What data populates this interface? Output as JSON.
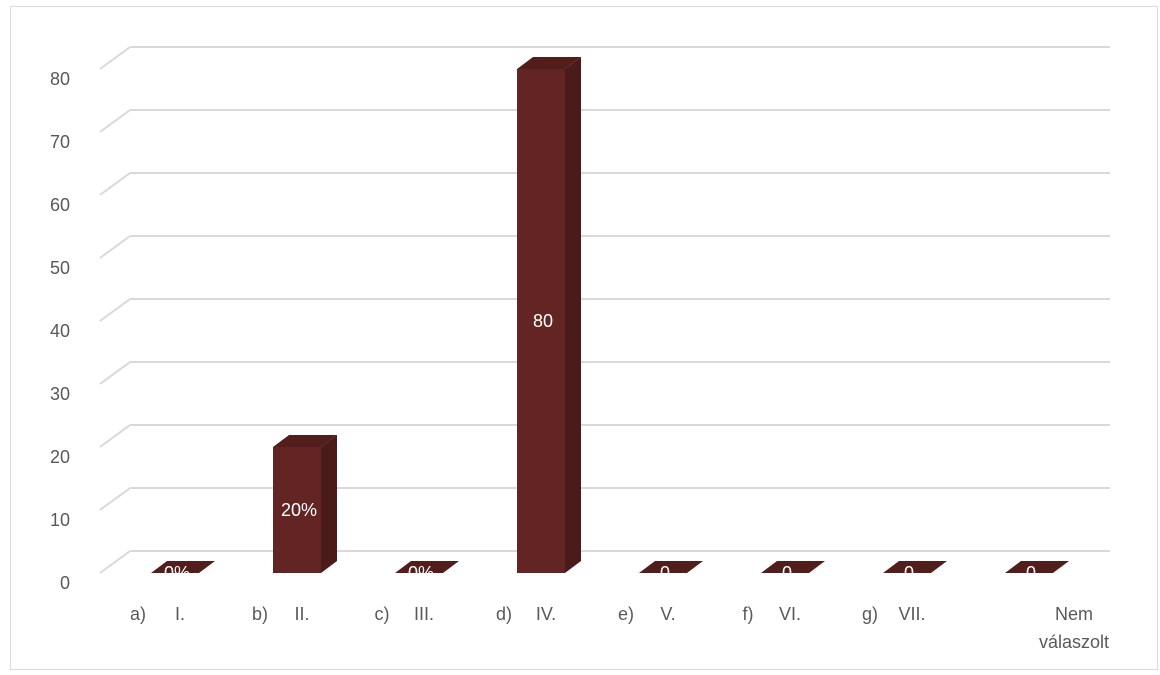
{
  "chart_data": {
    "type": "bar",
    "categories": [
      [
        "a)",
        "I."
      ],
      [
        "b)",
        "II."
      ],
      [
        "c)",
        "III."
      ],
      [
        "d)",
        "IV."
      ],
      [
        "e)",
        "V."
      ],
      [
        "f)",
        "VI."
      ],
      [
        "g)",
        "VII."
      ],
      [
        "",
        "Nem\nválaszolt"
      ]
    ],
    "values": [
      0,
      20,
      0,
      80,
      0,
      0,
      0,
      0
    ],
    "data_labels": [
      "0%",
      "20%",
      "0%",
      "80",
      "0",
      "0",
      "0",
      "0"
    ],
    "yticks": [
      "0",
      "10",
      "20",
      "30",
      "40",
      "50",
      "60",
      "70",
      "80"
    ],
    "ylim": [
      0,
      80
    ],
    "grid": true,
    "three_d": true,
    "title": "",
    "xlabel": "",
    "ylabel": "",
    "colors": {
      "bar_front": "#632523",
      "bar_side": "#4a1b1a",
      "bar_top": "#521e1c",
      "grid": "#d9d9d9",
      "text": "#595959"
    }
  }
}
